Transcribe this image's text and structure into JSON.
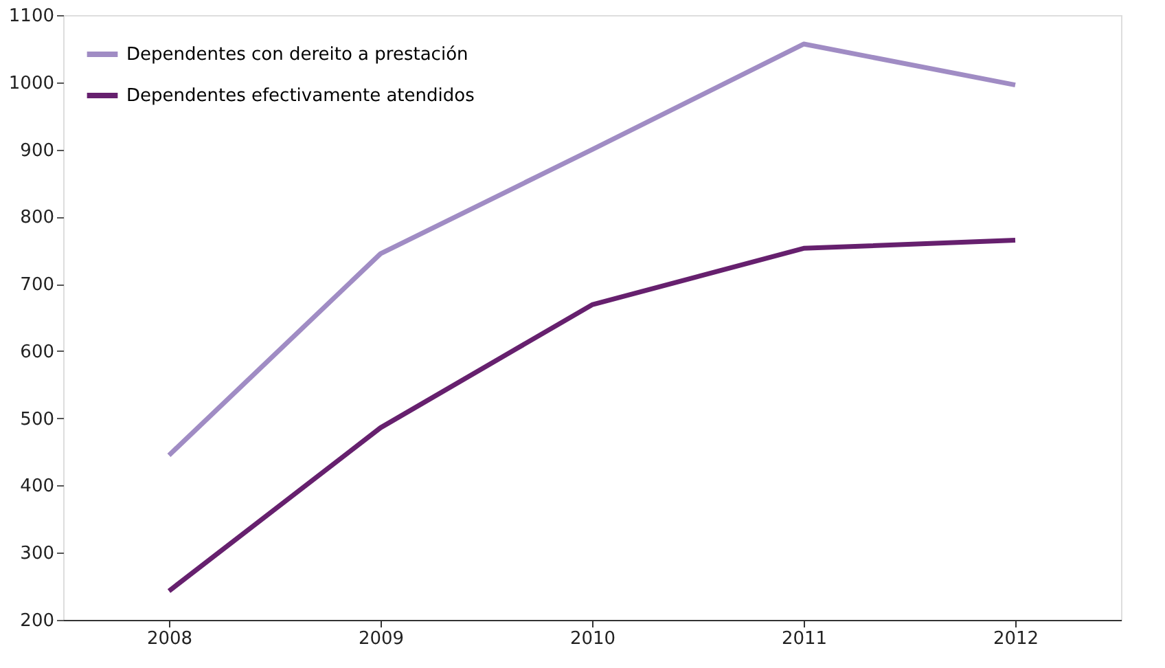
{
  "chart_data": {
    "type": "line",
    "categories": [
      "2008",
      "2009",
      "2010",
      "2011",
      "2012"
    ],
    "series": [
      {
        "name": "Dependentes con dereito a prestación",
        "color": "#a08cc4",
        "values": [
          445,
          745,
          900,
          1057,
          996
        ]
      },
      {
        "name": "Dependentes efectivamente atendidos",
        "color": "#66206e",
        "values": [
          243,
          486,
          669,
          753,
          765
        ]
      }
    ],
    "ylim": [
      200,
      1100
    ],
    "yticks": [
      200,
      300,
      400,
      500,
      600,
      700,
      800,
      900,
      1000,
      1100
    ],
    "grid": false,
    "legend": "top left",
    "marker": "none",
    "line_style": "solid"
  }
}
